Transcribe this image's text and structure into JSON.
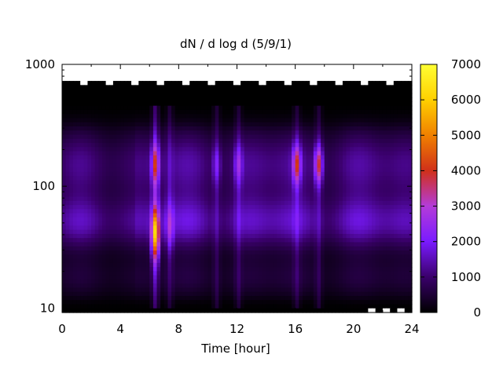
{
  "chart_data": {
    "type": "heatmap",
    "title": "dN / d log d (5/9/1)",
    "xlabel": "Time [hour]",
    "ylabel": "",
    "x_range": [
      0,
      24
    ],
    "x_ticks": [
      0,
      4,
      8,
      12,
      16,
      20,
      24
    ],
    "x_tick_labels": [
      "0",
      "4",
      "8",
      "12",
      "16",
      "20",
      "24"
    ],
    "y_range": [
      9.2,
      1000
    ],
    "y_scale": "log",
    "y_ticks": [
      10,
      100,
      1000
    ],
    "y_tick_labels": [
      "10",
      "100",
      "1000"
    ],
    "colorbar": {
      "range": [
        0,
        7000
      ],
      "ticks": [
        0,
        1000,
        2000,
        3000,
        4000,
        5000,
        6000,
        7000
      ],
      "tick_labels": [
        "0",
        "1000",
        "2000",
        "3000",
        "4000",
        "5000",
        "6000",
        "7000"
      ],
      "colormap": [
        "#000000",
        "#3a006b",
        "#7a1bff",
        "#b43cd8",
        "#d0301a",
        "#f08000",
        "#ffd000",
        "#ffff33"
      ]
    },
    "legend": "colorbar-right",
    "grid": false,
    "features": [
      {
        "time_h": 6.4,
        "diameter": 40,
        "value": 5600,
        "span_diam": [
          25,
          60
        ]
      },
      {
        "time_h": 6.4,
        "diameter": 150,
        "value": 3600,
        "span_diam": [
          110,
          220
        ]
      },
      {
        "time_h": 7.4,
        "diameter": 45,
        "value": 2600,
        "span_diam": [
          30,
          70
        ]
      },
      {
        "time_h": 10.6,
        "diameter": 150,
        "value": 2400,
        "span_diam": [
          110,
          210
        ]
      },
      {
        "time_h": 12.1,
        "diameter": 150,
        "value": 2600,
        "span_diam": [
          110,
          210
        ]
      },
      {
        "time_h": 16.1,
        "diameter": 150,
        "value": 3800,
        "span_diam": [
          110,
          210
        ]
      },
      {
        "time_h": 17.6,
        "diameter": 150,
        "value": 4000,
        "span_diam": [
          110,
          210
        ]
      }
    ]
  }
}
